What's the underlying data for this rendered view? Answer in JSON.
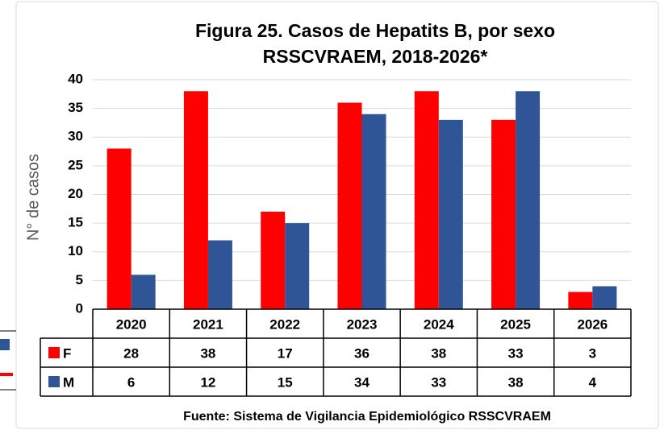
{
  "chart_data": {
    "type": "bar",
    "title": "Figura 25. Casos de Hepatits B, por sexo",
    "subtitle": "RSSCVRAEM, 2018-2026*",
    "y_label": "N° de casos",
    "source": "Fuente: Sistema de Vigilancia Epidemiológico RSSCVRAEM",
    "categories": [
      "2020",
      "2021",
      "2022",
      "2023",
      "2024",
      "2025",
      "2026"
    ],
    "series": [
      {
        "name": "F",
        "color": "#ff0000",
        "values": [
          28,
          38,
          17,
          36,
          38,
          33,
          3
        ]
      },
      {
        "name": "M",
        "color": "#2f5597",
        "values": [
          6,
          12,
          15,
          34,
          33,
          38,
          4
        ]
      }
    ],
    "ylim": [
      0,
      40
    ],
    "yticks": [
      0,
      5,
      10,
      15,
      20,
      25,
      30,
      35,
      40
    ],
    "grid": true
  }
}
